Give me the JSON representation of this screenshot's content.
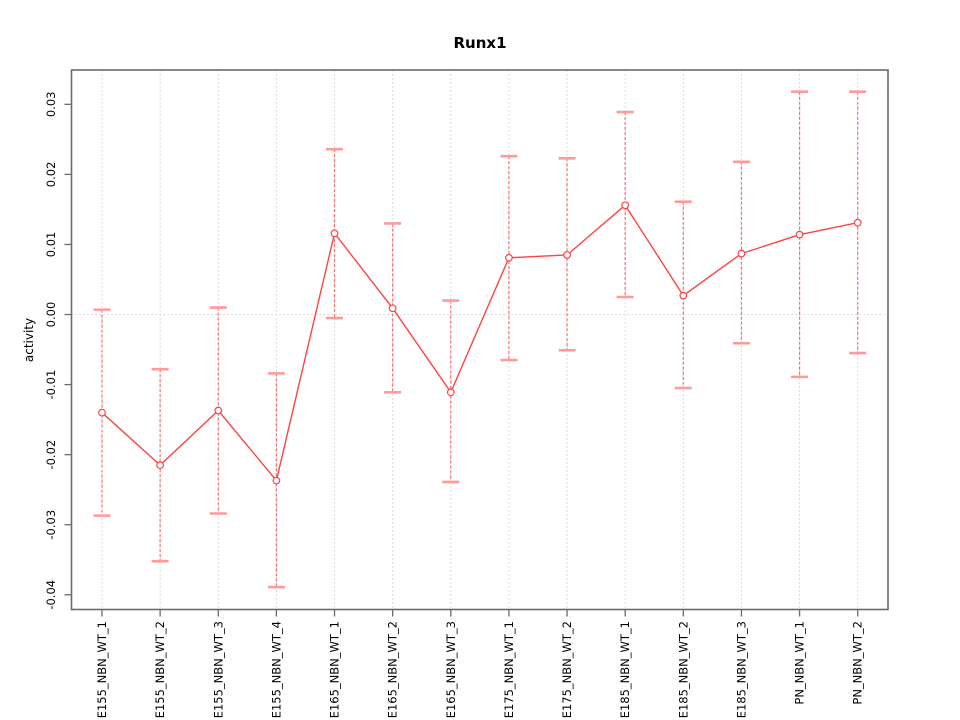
{
  "title": "Runx1",
  "y_axis_title": "activity",
  "chart_data": {
    "type": "line",
    "title": "Runx1",
    "xlabel": "",
    "ylabel": "activity",
    "legend": "none",
    "grid": "vertical dotted gridline at each category; horizontal dotted line at 0.00",
    "marker": "open-circle",
    "error_bars": true,
    "categories": [
      "E155_NBN_WT_1",
      "E155_NBN_WT_2",
      "E155_NBN_WT_3",
      "E155_NBN_WT_4",
      "E165_NBN_WT_1",
      "E165_NBN_WT_2",
      "E165_NBN_WT_3",
      "E175_NBN_WT_1",
      "E175_NBN_WT_2",
      "E185_NBN_WT_1",
      "E185_NBN_WT_2",
      "E185_NBN_WT_3",
      "PN_NBN_WT_1",
      "PN_NBN_WT_2"
    ],
    "series": [
      {
        "name": "activity",
        "values": [
          -0.014,
          -0.0215,
          -0.0137,
          -0.0237,
          0.0116,
          0.0009,
          -0.0111,
          0.0081,
          0.0085,
          0.0156,
          0.0027,
          0.0087,
          0.0114,
          0.0131
        ],
        "lower": [
          -0.0287,
          -0.0352,
          -0.0284,
          -0.0389,
          -0.0005,
          -0.0111,
          -0.0239,
          -0.0065,
          -0.0051,
          0.0025,
          -0.0105,
          -0.0041,
          -0.0089,
          -0.0055
        ],
        "upper": [
          0.0007,
          -0.0078,
          0.001,
          -0.0084,
          0.0236,
          0.013,
          0.002,
          0.0226,
          0.0223,
          0.0289,
          0.0161,
          0.0218,
          0.0318,
          0.0318
        ]
      }
    ],
    "y_ticks": [
      0.03,
      0.02,
      0.01,
      0,
      -0.01,
      -0.02,
      -0.03,
      -0.04
    ],
    "y_tick_labels": [
      "0.03",
      "0.02",
      "0.01",
      "0.00",
      "-0.01",
      "-0.02",
      "-0.03",
      "-0.04"
    ],
    "ylim": [
      -0.0421,
      0.0349
    ],
    "colors": {
      "series": "#ff4343",
      "error_bar": "#ff6e6e",
      "error_cap": "#ff9a9a",
      "gridline": "#d4d4d4",
      "axis_box": "#6b6b6b",
      "text": "#000000"
    }
  }
}
